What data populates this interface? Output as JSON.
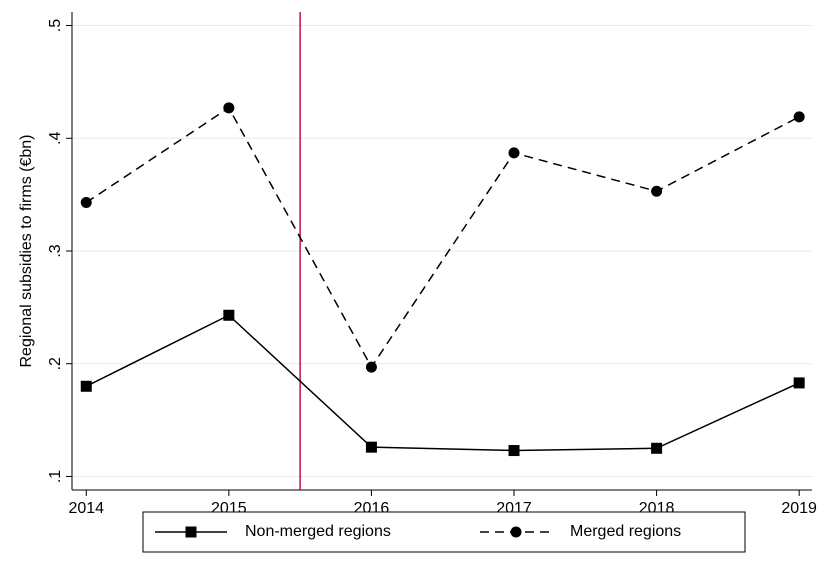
{
  "chart_data": {
    "type": "line",
    "ylabel": "Regional subsidies to firms (€bn)",
    "x": [
      2014,
      2015,
      2016,
      2017,
      2018,
      2019
    ],
    "series": [
      {
        "name": "Non-merged regions",
        "color": "#000000",
        "marker": "square",
        "dash": "solid",
        "values": [
          0.18,
          0.243,
          0.126,
          0.123,
          0.125,
          0.183
        ]
      },
      {
        "name": "Merged regions",
        "color": "#000000",
        "marker": "circle",
        "dash": "dashed",
        "values": [
          0.343,
          0.427,
          0.197,
          0.387,
          0.353,
          0.419
        ]
      }
    ],
    "vline": {
      "value": 2015.5,
      "color": "#c0134a"
    },
    "xlim": [
      2013.9,
      2019.09
    ],
    "ylim": [
      0.088,
      0.512
    ],
    "xticks": [
      2014,
      2015,
      2016,
      2017,
      2018,
      2019
    ],
    "yticks": [
      {
        "value": 0.1,
        "label": ".1"
      },
      {
        "value": 0.2,
        "label": ".2"
      },
      {
        "value": 0.3,
        "label": ".3"
      },
      {
        "value": 0.4,
        "label": ".4"
      },
      {
        "value": 0.5,
        "label": ".5"
      }
    ],
    "grid": true,
    "legend": "bottom"
  }
}
